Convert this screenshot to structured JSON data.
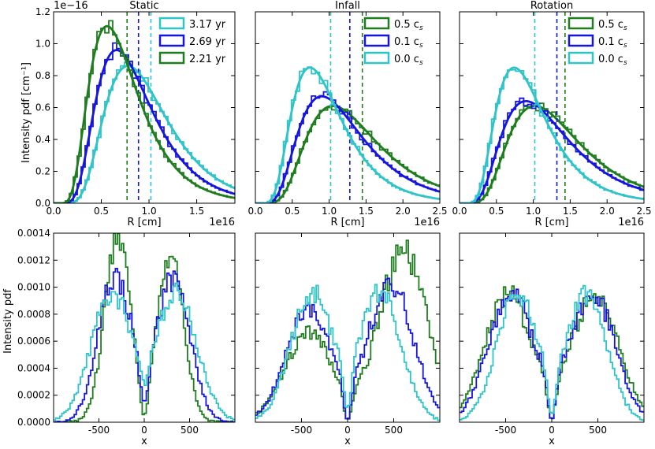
{
  "figure": {
    "y_exponent_label": "1e−16",
    "y_label_top": "Intensity pdf [cm⁻¹]",
    "y_label_bottom": "Intensity pdf",
    "colors": {
      "green": "#1e7d1e",
      "blue": "#1515dd",
      "cyan": "#2ec4c8"
    }
  },
  "chart_data": [
    {
      "type": "line",
      "title": "Static",
      "xlabel": "R [cm]",
      "x_exponent_label": "1e16",
      "xlim": [
        0,
        1.9
      ],
      "ylim": [
        0,
        1.2
      ],
      "xticks": [
        0.0,
        0.5,
        1.0,
        1.5
      ],
      "xtick_labels": [
        "0.0",
        "0.5",
        "1.0",
        "1.5"
      ],
      "yticks": [
        0.0,
        0.2,
        0.4,
        0.6,
        0.8,
        1.0,
        1.2
      ],
      "ytick_labels": [
        "0.0",
        "0.2",
        "0.4",
        "0.6",
        "0.8",
        "1.0",
        "1.2"
      ],
      "legend": {
        "location": "top-right",
        "entries": [
          "3.17 yr",
          "2.69 yr",
          "2.21 yr"
        ]
      },
      "series": [
        {
          "name": "3.17 yr",
          "color": "cyan",
          "peak_x": 0.78,
          "peak_y": 0.86,
          "mean_x": 1.02
        },
        {
          "name": "2.69 yr",
          "color": "blue",
          "peak_x": 0.66,
          "peak_y": 0.96,
          "mean_x": 0.89
        },
        {
          "name": "2.21 yr",
          "color": "green",
          "peak_x": 0.56,
          "peak_y": 1.11,
          "mean_x": 0.77
        }
      ]
    },
    {
      "type": "line",
      "title": "Infall",
      "xlabel": "R [cm]",
      "x_exponent_label": "1e16",
      "xlim": [
        0,
        2.5
      ],
      "ylim": [
        0,
        1.2
      ],
      "xticks": [
        0.0,
        0.5,
        1.0,
        1.5,
        2.0,
        2.5
      ],
      "xtick_labels": [
        "0.0",
        "0.5",
        "1.0",
        "1.5",
        "2.0",
        "2.5"
      ],
      "legend": {
        "location": "top-right",
        "entries": [
          "0.5 c",
          "0.1 c",
          "0.0 c"
        ],
        "subscript": "s"
      },
      "series": [
        {
          "name": "0.5 cs",
          "color": "green",
          "peak_x": 1.05,
          "peak_y": 0.61,
          "mean_x": 1.45
        },
        {
          "name": "0.1 cs",
          "color": "blue",
          "peak_x": 0.9,
          "peak_y": 0.67,
          "mean_x": 1.28
        },
        {
          "name": "0.0 cs",
          "color": "cyan",
          "peak_x": 0.74,
          "peak_y": 0.85,
          "mean_x": 1.02
        }
      ]
    },
    {
      "type": "line",
      "title": "Rotation",
      "xlabel": "R [cm]",
      "x_exponent_label": "1e16",
      "xlim": [
        0,
        2.5
      ],
      "ylim": [
        0,
        1.2
      ],
      "xticks": [
        0.0,
        0.5,
        1.0,
        1.5,
        2.0,
        2.5
      ],
      "xtick_labels": [
        "0.0",
        "0.5",
        "1.0",
        "1.5",
        "2.0",
        "2.5"
      ],
      "legend": {
        "location": "top-right",
        "entries": [
          "0.5 c",
          "0.1 c",
          "0.0 c"
        ],
        "subscript": "s"
      },
      "series": [
        {
          "name": "0.5 cs",
          "color": "green",
          "peak_x": 1.02,
          "peak_y": 0.61,
          "mean_x": 1.43
        },
        {
          "name": "0.1 cs",
          "color": "blue",
          "peak_x": 0.9,
          "peak_y": 0.64,
          "mean_x": 1.32
        },
        {
          "name": "0.0 cs",
          "color": "cyan",
          "peak_x": 0.74,
          "peak_y": 0.85,
          "mean_x": 1.02
        }
      ]
    },
    {
      "type": "line",
      "xlabel": "x",
      "xlim": [
        -1000,
        1000
      ],
      "ylim": [
        0,
        0.0014
      ],
      "xticks": [
        -500,
        0,
        500
      ],
      "xtick_labels": [
        "-500",
        "0",
        "500"
      ],
      "yticks": [
        0,
        0.0002,
        0.0004,
        0.0006,
        0.0008,
        0.001,
        0.0012,
        0.0014
      ],
      "ytick_labels": [
        "0.0000",
        "0.0002",
        "0.0004",
        "0.0006",
        "0.0008",
        "0.0010",
        "0.0012",
        "0.0014"
      ],
      "series": [
        {
          "name": "2.21 yr",
          "color": "green",
          "left_peak": [
            -290,
            0.00138
          ],
          "right_peak": [
            290,
            0.00122
          ],
          "center": 5e-05,
          "width": 145
        },
        {
          "name": "2.69 yr",
          "color": "blue",
          "left_peak": [
            -320,
            0.00108
          ],
          "right_peak": [
            320,
            0.00106
          ],
          "center": 0.00015,
          "width": 185
        },
        {
          "name": "3.17 yr",
          "color": "cyan",
          "left_peak": [
            -360,
            0.00095
          ],
          "right_peak": [
            360,
            0.00095
          ],
          "center": 0.00028,
          "width": 225
        }
      ]
    },
    {
      "type": "line",
      "xlabel": "x",
      "xlim": [
        -1000,
        1000
      ],
      "ylim": [
        0,
        0.0014
      ],
      "xticks": [
        -500,
        0,
        500
      ],
      "xtick_labels": [
        "-500",
        "0",
        "500"
      ],
      "series": [
        {
          "name": "0.5 cs",
          "color": "green",
          "left_peak": [
            -420,
            0.00066
          ],
          "right_peak": [
            600,
            0.00127
          ],
          "center": 2e-05,
          "width": 260
        },
        {
          "name": "0.1 cs",
          "color": "blue",
          "left_peak": [
            -420,
            0.00085
          ],
          "right_peak": [
            470,
            0.00102
          ],
          "center": 2e-05,
          "width": 245
        },
        {
          "name": "0.0 cs",
          "color": "cyan",
          "left_peak": [
            -390,
            0.00096
          ],
          "right_peak": [
            360,
            0.00096
          ],
          "center": 0.0001,
          "width": 225
        }
      ]
    },
    {
      "type": "line",
      "xlabel": "x",
      "xlim": [
        -1000,
        1000
      ],
      "ylim": [
        0,
        0.0014
      ],
      "xticks": [
        -500,
        0,
        500
      ],
      "xtick_labels": [
        "-500",
        "0",
        "500"
      ],
      "series": [
        {
          "name": "0.5 cs",
          "color": "green",
          "left_peak": [
            -470,
            0.00095
          ],
          "right_peak": [
            470,
            0.00095
          ],
          "center": 2e-05,
          "width": 255
        },
        {
          "name": "0.1 cs",
          "color": "blue",
          "left_peak": [
            -440,
            0.00095
          ],
          "right_peak": [
            440,
            0.00095
          ],
          "center": 2e-05,
          "width": 245
        },
        {
          "name": "0.0 cs",
          "color": "cyan",
          "left_peak": [
            -380,
            0.00094
          ],
          "right_peak": [
            380,
            0.00094
          ],
          "center": 6e-05,
          "width": 220
        }
      ]
    }
  ]
}
